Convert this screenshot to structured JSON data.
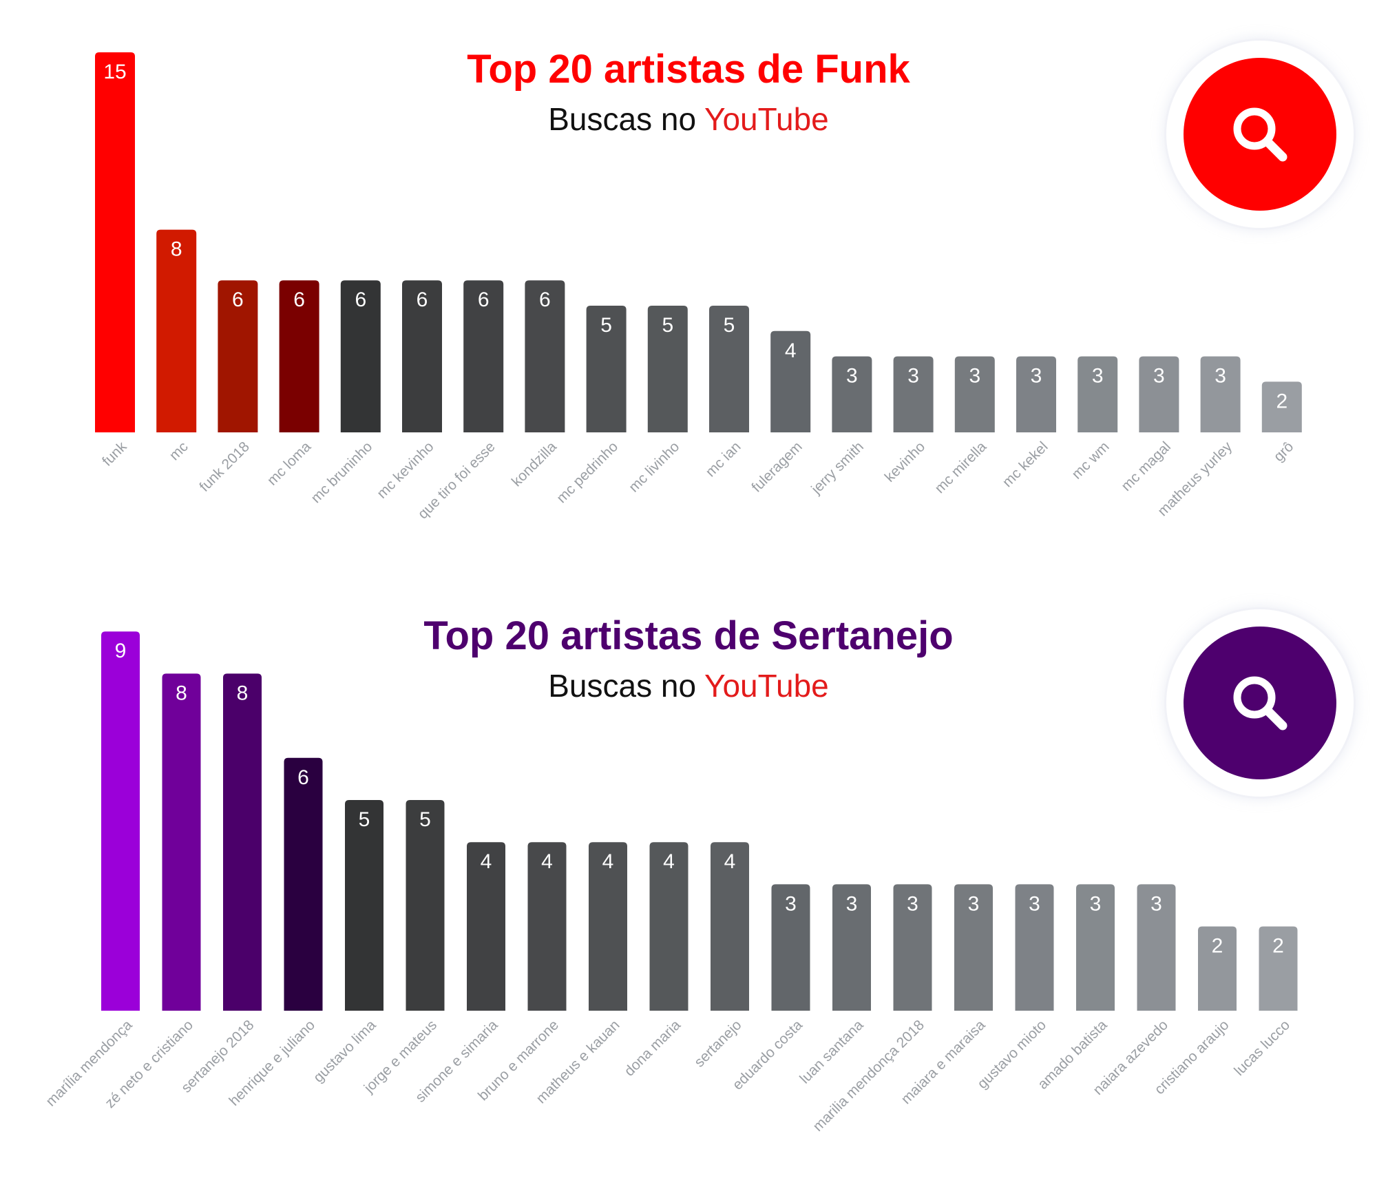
{
  "chart_data": [
    {
      "type": "bar",
      "title": "Top 20 artistas de Funk",
      "subtitle_prefix": "Buscas no",
      "subtitle_accent": "YouTube",
      "categories": [
        "funk",
        "mc",
        "funk 2018",
        "mc loma",
        "mc bruninho",
        "mc kevinho",
        "que tiro foi esse",
        "kondzilla",
        "mc pedrinho",
        "mc livinho",
        "mc ian",
        "fuleragem",
        "jerry smith",
        "kevinho",
        "mc mirella",
        "mc kekel",
        "mc wm",
        "mc magal",
        "matheus yurley",
        "grô"
      ],
      "values": [
        15,
        8,
        6,
        6,
        6,
        6,
        6,
        6,
        5,
        5,
        5,
        4,
        3,
        3,
        3,
        3,
        3,
        3,
        3,
        2
      ],
      "colors": [
        "#ff0000",
        "#d11a00",
        "#a01500",
        "#7a0000",
        "#333435",
        "#3c3d3e",
        "#414244",
        "#48494b",
        "#4f5153",
        "#55585a",
        "#5c5f62",
        "#62666a",
        "#696d71",
        "#707478",
        "#777b7f",
        "#7e8287",
        "#858a8e",
        "#8c9095",
        "#93979c",
        "#9a9ea3"
      ],
      "accent": "#ff0000",
      "ylim": [
        0,
        15
      ],
      "legend": "none",
      "grid": false
    },
    {
      "type": "bar",
      "title": "Top 20 artistas de Sertanejo",
      "subtitle_prefix": "Buscas no",
      "subtitle_accent": "YouTube",
      "categories": [
        "marília mendonça",
        "zé neto e cristiano",
        "sertanejo 2018",
        "henrique e juliano",
        "gustavo lima",
        "jorge e mateus",
        "simone e simaria",
        "bruno e marrone",
        "matheus e kauan",
        "dona maria",
        "sertanejo",
        "eduardo costa",
        "luan santana",
        "marilia mendonça 2018",
        "maiara e maraisa",
        "gustavo mioto",
        "amado batista",
        "naiara azevedo",
        "cristiano araujo",
        "lucas lucco"
      ],
      "values": [
        9,
        8,
        8,
        6,
        5,
        5,
        4,
        4,
        4,
        4,
        4,
        3,
        3,
        3,
        3,
        3,
        3,
        3,
        2,
        2
      ],
      "colors": [
        "#9b00d9",
        "#70009a",
        "#4b006a",
        "#2a0040",
        "#333435",
        "#3c3d3e",
        "#414244",
        "#48494b",
        "#4f5153",
        "#55585a",
        "#5c5f62",
        "#62666a",
        "#696d71",
        "#707478",
        "#777b7f",
        "#7e8287",
        "#858a8e",
        "#8c9095",
        "#93979c",
        "#9a9ea3"
      ],
      "accent": "#4e006e",
      "ylim": [
        0,
        9
      ],
      "legend": "none",
      "grid": false
    }
  ],
  "icons": [
    "search-icon",
    "search-icon"
  ],
  "colors": {
    "funk_title": "#ff0000",
    "sertanejo_title": "#4e006e",
    "youtube_red": "#e31b1b",
    "label_gray": "#9a9ea3",
    "value_label": "#ffffff"
  }
}
